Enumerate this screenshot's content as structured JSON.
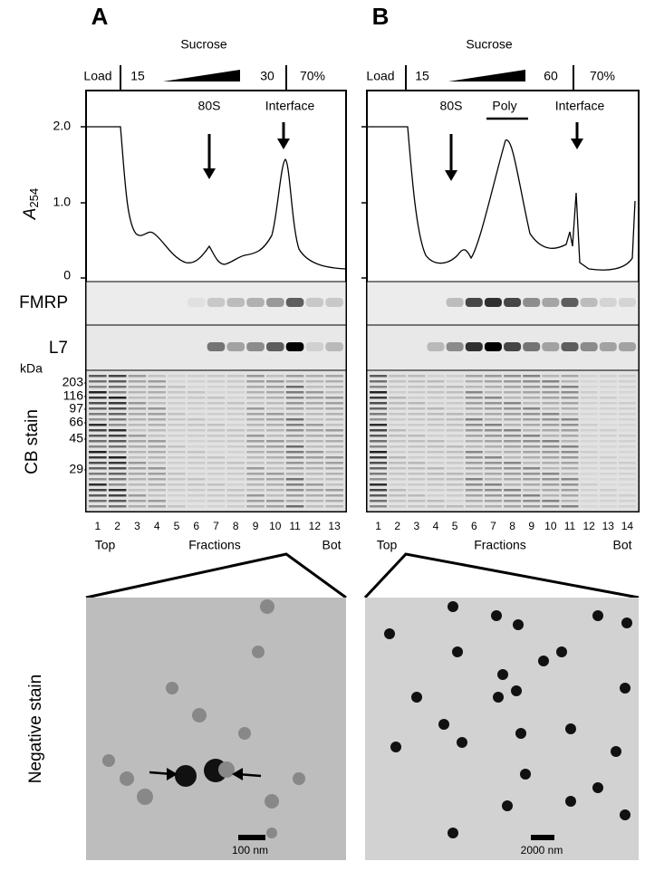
{
  "panels": [
    {
      "label": "A",
      "sucrose": "Sucrose",
      "load": "Load",
      "gradient_start": "15",
      "gradient_end": "30",
      "cushion": "70%",
      "peaks": [
        "80S",
        "Interface"
      ],
      "lanes": [
        "1",
        "2",
        "3",
        "4",
        "5",
        "6",
        "7",
        "8",
        "9",
        "10",
        "11",
        "12",
        "13"
      ],
      "lane_caption": [
        "Top",
        "Fractions",
        "Bot"
      ],
      "scale_bar": "100 nm"
    },
    {
      "label": "B",
      "sucrose": "Sucrose",
      "load": "Load",
      "gradient_start": "15",
      "gradient_end": "60",
      "cushion": "70%",
      "peaks": [
        "80S",
        "Poly",
        "Interface"
      ],
      "lanes": [
        "1",
        "2",
        "3",
        "4",
        "5",
        "6",
        "7",
        "8",
        "9",
        "10",
        "11",
        "12",
        "13",
        "14"
      ],
      "lane_caption": [
        "Top",
        "Fractions",
        "Bot"
      ],
      "scale_bar": "2000 nm"
    }
  ],
  "y_axis": {
    "letter": "A",
    "subscript": "254",
    "ticks": [
      "2.0",
      "1.0",
      "0"
    ]
  },
  "blots": [
    "FMRP",
    "L7",
    "CB stain"
  ],
  "kda": "kDa",
  "markers": [
    "203",
    "116",
    "97",
    "66",
    "45",
    "29"
  ],
  "em_label": "Negative stain"
}
